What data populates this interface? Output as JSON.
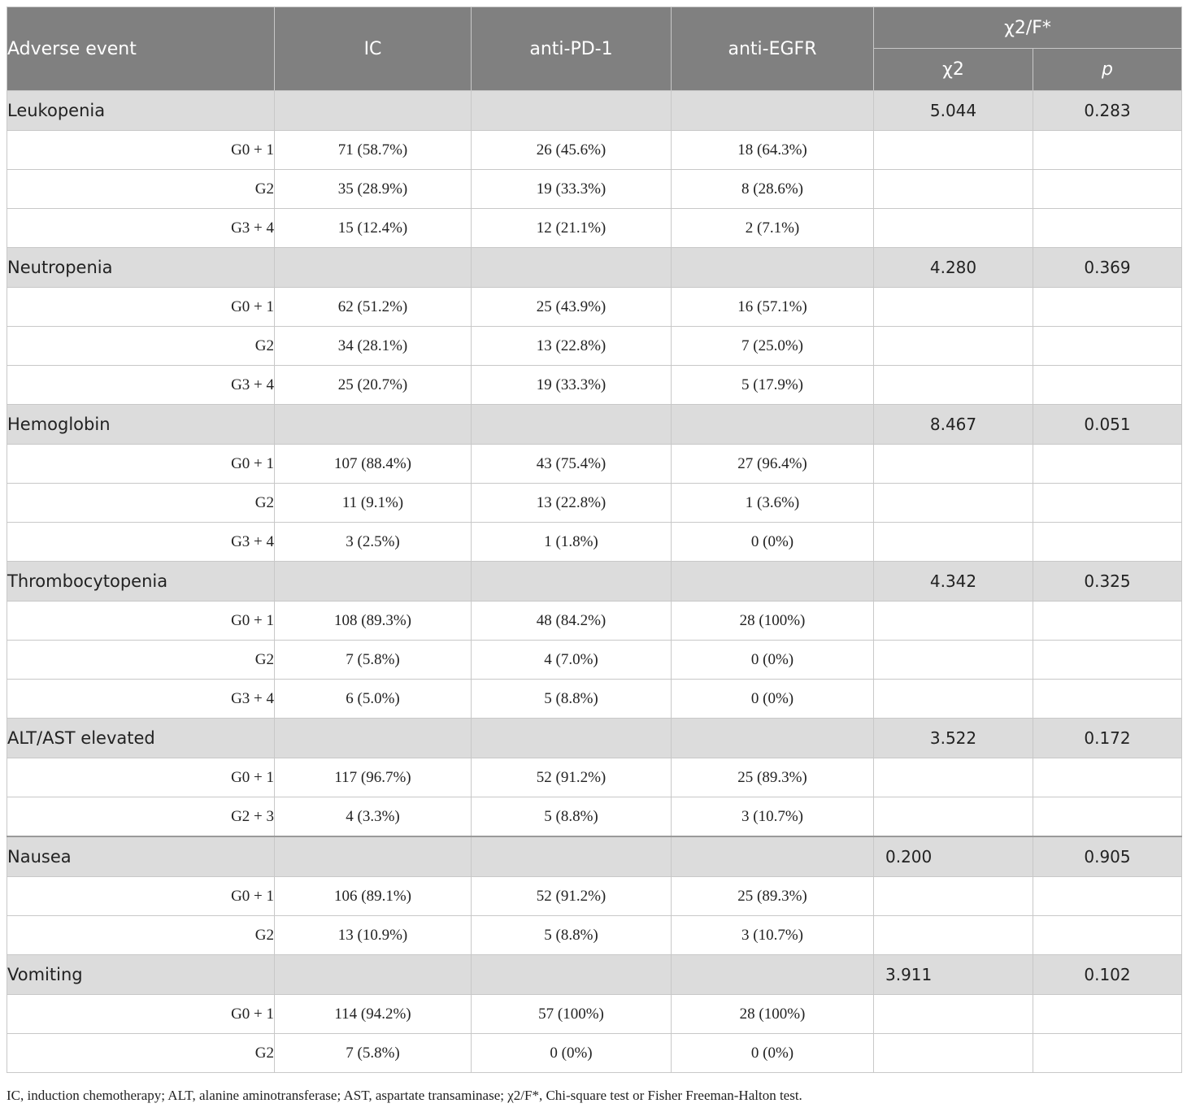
{
  "header": {
    "adverse_event": "Adverse event",
    "ic": "IC",
    "anti_pd1": "anti-PD-1",
    "anti_egfr": "anti-EGFR",
    "stat_group": "χ2/F*",
    "chi2": "χ2",
    "p": "p"
  },
  "groups": [
    {
      "name": "Leukopenia",
      "chi2": "5.044",
      "p": "0.283",
      "rows": [
        {
          "grade": "G0 + 1",
          "ic": "71 (58.7%)",
          "pd1": "26 (45.6%)",
          "egfr": "18 (64.3%)"
        },
        {
          "grade": "G2",
          "ic": "35 (28.9%)",
          "pd1": "19 (33.3%)",
          "egfr": "8 (28.6%)"
        },
        {
          "grade": "G3 + 4",
          "ic": "15 (12.4%)",
          "pd1": "12 (21.1%)",
          "egfr": "2 (7.1%)"
        }
      ]
    },
    {
      "name": "Neutropenia",
      "chi2": "4.280",
      "p": "0.369",
      "rows": [
        {
          "grade": "G0 + 1",
          "ic": "62 (51.2%)",
          "pd1": "25 (43.9%)",
          "egfr": "16 (57.1%)"
        },
        {
          "grade": "G2",
          "ic": "34 (28.1%)",
          "pd1": "13 (22.8%)",
          "egfr": "7 (25.0%)"
        },
        {
          "grade": "G3 + 4",
          "ic": "25 (20.7%)",
          "pd1": "19 (33.3%)",
          "egfr": "5 (17.9%)"
        }
      ]
    },
    {
      "name": "Hemoglobin",
      "chi2": "8.467",
      "p": "0.051",
      "rows": [
        {
          "grade": "G0 + 1",
          "ic": "107 (88.4%)",
          "pd1": "43 (75.4%)",
          "egfr": "27 (96.4%)"
        },
        {
          "grade": "G2",
          "ic": "11 (9.1%)",
          "pd1": "13 (22.8%)",
          "egfr": "1 (3.6%)"
        },
        {
          "grade": "G3 + 4",
          "ic": "3 (2.5%)",
          "pd1": "1 (1.8%)",
          "egfr": "0 (0%)"
        }
      ]
    },
    {
      "name": "Thrombocytopenia",
      "chi2": "4.342",
      "p": "0.325",
      "rows": [
        {
          "grade": "G0 + 1",
          "ic": "108 (89.3%)",
          "pd1": "48 (84.2%)",
          "egfr": "28 (100%)"
        },
        {
          "grade": "G2",
          "ic": "7 (5.8%)",
          "pd1": "4 (7.0%)",
          "egfr": "0 (0%)"
        },
        {
          "grade": "G3 + 4",
          "ic": "6 (5.0%)",
          "pd1": "5 (8.8%)",
          "egfr": "0 (0%)"
        }
      ]
    },
    {
      "name": "ALT/AST elevated",
      "chi2": "3.522",
      "p": "0.172",
      "rows": [
        {
          "grade": "G0 + 1",
          "ic": "117 (96.7%)",
          "pd1": "52 (91.2%)",
          "egfr": "25 (89.3%)"
        },
        {
          "grade": "G2 + 3",
          "ic": "4 (3.3%)",
          "pd1": "5 (8.8%)",
          "egfr": "3 (10.7%)"
        }
      ]
    },
    {
      "name": "Nausea",
      "chi2": "0.200",
      "p": "0.905",
      "rows": [
        {
          "grade": "G0 + 1",
          "ic": "106 (89.1%)",
          "pd1": "52 (91.2%)",
          "egfr": "25 (89.3%)"
        },
        {
          "grade": "G2",
          "ic": "13 (10.9%)",
          "pd1": "5 (8.8%)",
          "egfr": "3 (10.7%)"
        }
      ]
    },
    {
      "name": "Vomiting",
      "chi2": "3.911",
      "p": "0.102",
      "rows": [
        {
          "grade": "G0 + 1",
          "ic": "114 (94.2%)",
          "pd1": "57 (100%)",
          "egfr": "28 (100%)"
        },
        {
          "grade": "G2",
          "ic": "7 (5.8%)",
          "pd1": "0 (0%)",
          "egfr": "0 (0%)"
        }
      ]
    }
  ],
  "footnote": "IC, induction chemotherapy; ALT, alanine aminotransferase; AST, aspartate transaminase; χ2/F*, Chi-square test or Fisher Freeman-Halton test.",
  "colors": {
    "header_bg": "#808080",
    "category_bg": "#dcdcdc",
    "border": "#c8c8c8"
  }
}
